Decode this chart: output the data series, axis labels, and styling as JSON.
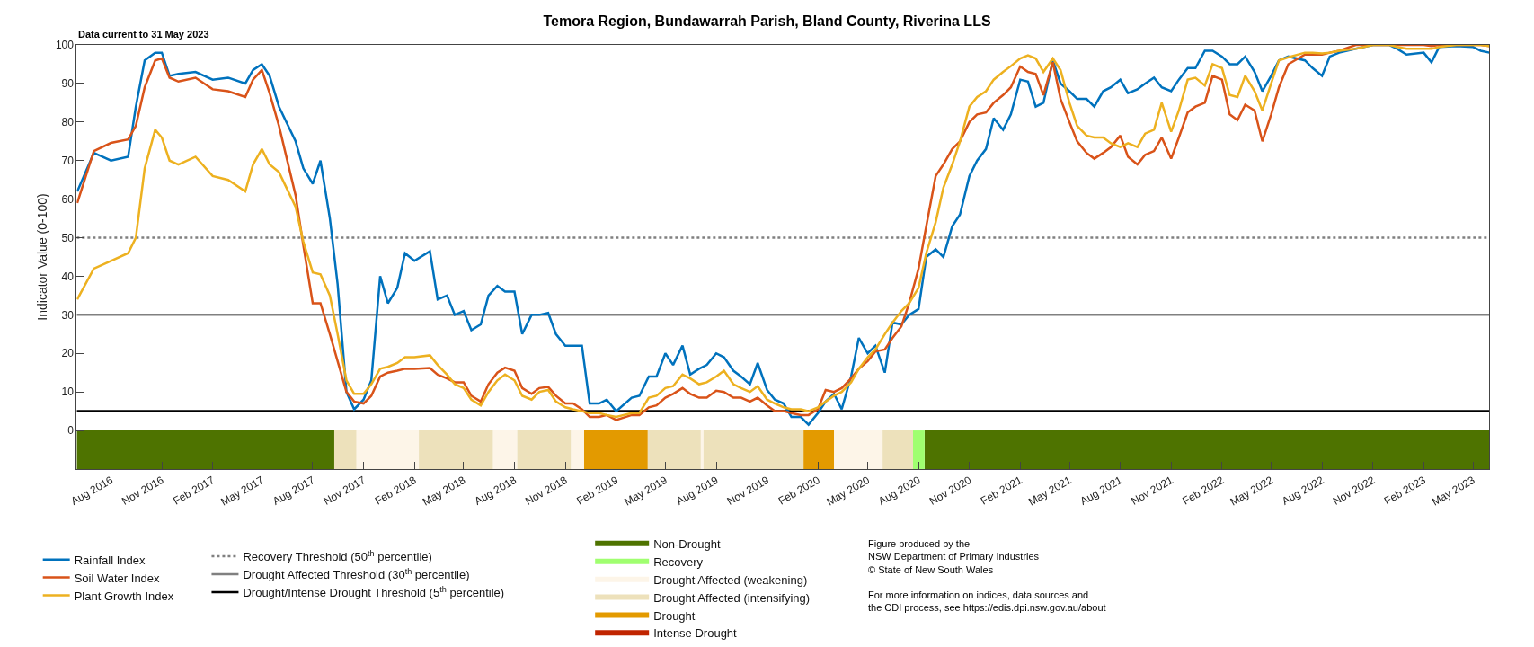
{
  "chart_data": {
    "type": "line",
    "title": "Temora Region, Bundawarrah Parish, Bland County, Riverina LLS",
    "ylabel": "Indicator Value (0-100)",
    "annotations": [
      "Data current to 31 May 2023",
      "Figure produced by the\nNSW Department of Primary Industries\n© State of New South Wales",
      "For more information on indices, data sources and\nthe CDI process, see https://edis.dpi.nsw.gov.au/about",
      "Intense Drought"
    ],
    "x": [
      "2016-06-01",
      "2016-07-01",
      "2016-08-01",
      "2016-09-01",
      "2016-09-15",
      "2016-10-01",
      "2016-10-20",
      "2016-11-01",
      "2016-11-15",
      "2016-12-01",
      "2017-01-01",
      "2017-02-01",
      "2017-03-01",
      "2017-04-01",
      "2017-04-15",
      "2017-05-01",
      "2017-05-15",
      "2017-06-01",
      "2017-07-01",
      "2017-07-15",
      "2017-08-01",
      "2017-08-15",
      "2017-09-01",
      "2017-09-15",
      "2017-10-01",
      "2017-10-15",
      "2017-11-01",
      "2017-11-15",
      "2017-12-01",
      "2017-12-15",
      "2018-01-01",
      "2018-01-15",
      "2018-02-01",
      "2018-03-01",
      "2018-03-15",
      "2018-04-01",
      "2018-04-15",
      "2018-05-01",
      "2018-05-15",
      "2018-06-01",
      "2018-06-15",
      "2018-07-01",
      "2018-07-15",
      "2018-08-01",
      "2018-08-15",
      "2018-09-01",
      "2018-09-15",
      "2018-10-01",
      "2018-10-15",
      "2018-11-01",
      "2018-11-15",
      "2018-12-01",
      "2018-12-15",
      "2019-01-01",
      "2019-01-15",
      "2019-02-01",
      "2019-03-01",
      "2019-03-15",
      "2019-04-01",
      "2019-04-15",
      "2019-05-01",
      "2019-05-15",
      "2019-06-01",
      "2019-06-15",
      "2019-07-01",
      "2019-07-15",
      "2019-08-01",
      "2019-08-15",
      "2019-09-01",
      "2019-09-15",
      "2019-10-01",
      "2019-10-15",
      "2019-11-01",
      "2019-11-15",
      "2019-12-01",
      "2019-12-15",
      "2020-01-01",
      "2020-01-15",
      "2020-02-01",
      "2020-02-15",
      "2020-03-01",
      "2020-03-15",
      "2020-04-01",
      "2020-04-15",
      "2020-05-01",
      "2020-05-15",
      "2020-06-01",
      "2020-06-15",
      "2020-07-01",
      "2020-07-15",
      "2020-08-01",
      "2020-08-15",
      "2020-09-01",
      "2020-09-15",
      "2020-10-01",
      "2020-10-15",
      "2020-11-01",
      "2020-11-15",
      "2020-12-01",
      "2020-12-15",
      "2021-01-01",
      "2021-01-15",
      "2021-02-01",
      "2021-02-15",
      "2021-03-01",
      "2021-03-15",
      "2021-04-01",
      "2021-04-15",
      "2021-05-01",
      "2021-05-15",
      "2021-06-01",
      "2021-06-15",
      "2021-07-01",
      "2021-07-15",
      "2021-08-01",
      "2021-08-15",
      "2021-09-01",
      "2021-09-15",
      "2021-10-01",
      "2021-10-15",
      "2021-11-01",
      "2021-11-15",
      "2021-12-01",
      "2021-12-15",
      "2022-01-01",
      "2022-01-15",
      "2022-02-01",
      "2022-02-15",
      "2022-03-01",
      "2022-03-15",
      "2022-04-01",
      "2022-04-15",
      "2022-05-01",
      "2022-05-15",
      "2022-06-01",
      "2022-07-01",
      "2022-07-15",
      "2022-08-01",
      "2022-08-15",
      "2022-09-01",
      "2022-10-01",
      "2022-11-01",
      "2022-12-01",
      "2022-12-15",
      "2023-01-01",
      "2023-02-01",
      "2023-02-15",
      "2023-03-01",
      "2023-04-01",
      "2023-05-01",
      "2023-05-15",
      "2023-05-31"
    ],
    "series": [
      {
        "name": "Rainfall Index",
        "color": "#0072bd",
        "values": [
          62,
          72,
          70,
          71,
          84,
          96,
          98,
          98,
          92,
          92.5,
          93,
          91,
          91.5,
          90,
          93.5,
          95,
          92,
          84,
          75,
          68,
          64,
          70,
          55,
          38,
          10,
          5.5,
          8,
          13,
          40,
          33,
          37,
          46,
          44,
          46.5,
          34,
          35,
          30,
          31,
          26,
          27.5,
          35,
          37.5,
          36,
          36,
          25,
          30,
          30,
          30.5,
          25,
          22,
          22,
          22,
          7,
          7,
          8,
          5,
          8.5,
          9,
          14,
          14,
          20,
          17,
          22,
          14.5,
          16,
          17,
          20,
          19,
          15.5,
          14,
          12,
          17.5,
          10.5,
          8,
          7,
          3.5,
          3.5,
          1.5,
          4.5,
          7.5,
          9.5,
          5.5,
          14,
          24,
          20,
          22,
          15,
          28,
          27.5,
          30,
          31.5,
          45,
          47,
          45,
          53,
          56,
          66,
          70,
          73,
          81,
          78,
          82,
          91,
          90.5,
          84,
          85,
          96,
          90,
          88,
          86,
          86,
          84,
          88,
          89,
          91,
          87.5,
          88.5,
          90,
          91.5,
          89,
          88,
          91,
          94,
          94,
          98.5,
          98.5,
          97,
          95,
          95,
          97,
          93,
          88,
          92,
          96,
          97,
          96,
          94,
          92,
          97,
          98,
          99,
          100,
          100,
          99,
          97.5,
          98,
          95.5,
          99.5,
          99.7,
          99.5,
          98.5,
          98
        ]
      },
      {
        "name": "Soil Water Index",
        "color": "#d95319",
        "values": [
          59,
          72.5,
          74.6,
          75.5,
          79,
          89,
          96,
          96.5,
          91.5,
          90.5,
          91.5,
          88.5,
          88,
          86.5,
          91,
          93.5,
          87.5,
          79,
          61,
          48,
          33,
          33,
          25,
          18,
          10,
          7.5,
          7,
          9,
          14,
          15,
          15.5,
          16,
          16,
          16.2,
          14.5,
          13.5,
          12.5,
          12.5,
          9,
          7.5,
          12,
          15,
          16.3,
          15.5,
          11,
          9.5,
          11,
          11.3,
          9,
          7,
          7,
          5.5,
          3.5,
          3.5,
          4,
          2.7,
          4,
          4,
          6,
          6.5,
          8.5,
          9.5,
          11,
          9.5,
          8.5,
          8.5,
          10.3,
          10,
          8.5,
          8.5,
          7.5,
          8.5,
          6.5,
          5,
          5,
          4.5,
          4,
          4,
          5.5,
          10.5,
          10,
          11,
          13.5,
          16,
          18,
          20.5,
          21,
          24,
          27,
          33,
          42,
          53,
          66,
          69,
          73,
          75,
          80,
          82,
          82.5,
          85,
          87,
          89,
          94.4,
          93,
          92.5,
          87,
          95.5,
          86,
          80,
          75,
          72,
          70.5,
          72,
          73.5,
          76.5,
          71,
          69,
          71.5,
          72.5,
          76,
          70.5,
          76,
          82.5,
          84,
          85,
          92,
          91,
          82,
          80.5,
          84.5,
          83,
          75,
          82,
          89,
          95,
          97.5,
          97.5,
          97.5,
          98,
          98.5,
          100,
          100,
          100,
          100,
          100,
          100,
          99.7,
          100,
          100,
          100,
          100,
          99.7
        ]
      },
      {
        "name": "Plant Growth Index",
        "color": "#edb120",
        "values": [
          34,
          42,
          44,
          46,
          50,
          68,
          78,
          76,
          70,
          69,
          71,
          66,
          65,
          62,
          69,
          73,
          69,
          67,
          58,
          49,
          41,
          40.5,
          35,
          25,
          13,
          9.5,
          9.5,
          12,
          16,
          16.5,
          17.5,
          19,
          19,
          19.5,
          17,
          14.5,
          12,
          11,
          8,
          6.5,
          10,
          13,
          14.5,
          13,
          9,
          8,
          10,
          10.5,
          7.5,
          6,
          5.5,
          5,
          4.5,
          4.5,
          4,
          3.5,
          4.5,
          4.5,
          8.5,
          9,
          11,
          11.5,
          14.5,
          13.5,
          12,
          12.5,
          14,
          15.5,
          12,
          11,
          10,
          11.5,
          8,
          7,
          6,
          5.5,
          5.5,
          5,
          6,
          7.5,
          9,
          10,
          12.5,
          16,
          19,
          21,
          25,
          28,
          31,
          33,
          37,
          46,
          54,
          63,
          69,
          75,
          84,
          86.5,
          88,
          91,
          93,
          94.5,
          96.5,
          97.3,
          96.5,
          93,
          96.5,
          93.5,
          85,
          79,
          76.5,
          76,
          76,
          74.5,
          73.5,
          74.5,
          73.5,
          77,
          78,
          85,
          77.5,
          83,
          91,
          91.5,
          89.5,
          95,
          94,
          87,
          86.5,
          92,
          88,
          83,
          90,
          96,
          96.8,
          98,
          98,
          97.8,
          98,
          98.5,
          99,
          100,
          100,
          99.5,
          99,
          99,
          99,
          99.5,
          100,
          100,
          100,
          99.7
        ]
      }
    ],
    "ref_lines": [
      {
        "axis": "y",
        "value": 50,
        "label": "Recovery Threshold (50$^{th}$ percentile)",
        "color": "#808080",
        "line_style": "dotted"
      },
      {
        "axis": "y",
        "value": 30,
        "label": "Drought Affected Threshold (30$^{th}$ percentile)",
        "color": "#808080",
        "line_style": "solid"
      },
      {
        "axis": "y",
        "value": 5,
        "label": "Drought/Intense Drought Threshold (5$^{th}$ percentile)",
        "color": "#000000",
        "line_style": "solid"
      }
    ],
    "bands": [
      {
        "axis": "x",
        "from": "2016-05-31",
        "to": "2017-09-09",
        "label": "Non-Drought",
        "color": "#4e7300"
      },
      {
        "axis": "x",
        "from": "2020-08-12",
        "to": "2023-05-31",
        "color": "#4e7300"
      },
      {
        "axis": "x",
        "from": "2020-07-22",
        "to": "2020-08-12",
        "label": "Recovery",
        "color": "#a0ff70"
      },
      {
        "axis": "x",
        "from": "2017-10-19",
        "to": "2018-02-09",
        "label": "Drought Affected (weakening)",
        "color": "#fdf5e8"
      },
      {
        "axis": "x",
        "from": "2018-06-23",
        "to": "2018-08-06",
        "color": "#fdf5e8"
      },
      {
        "axis": "x",
        "from": "2018-11-11",
        "to": "2018-12-05",
        "color": "#fdf5e8"
      },
      {
        "axis": "x",
        "from": "2019-07-04",
        "to": "2019-07-09",
        "color": "#fdf5e8"
      },
      {
        "axis": "x",
        "from": "2020-03-01",
        "to": "2020-05-28",
        "color": "#fdf5e8"
      },
      {
        "axis": "x",
        "from": "2017-09-09",
        "to": "2017-10-19",
        "label": "Drought Affected (intensifying)",
        "color": "#ede1bb"
      },
      {
        "axis": "x",
        "from": "2018-02-09",
        "to": "2018-06-23",
        "color": "#ede1bb"
      },
      {
        "axis": "x",
        "from": "2018-08-06",
        "to": "2018-11-11",
        "color": "#ede1bb"
      },
      {
        "axis": "x",
        "from": "2019-03-30",
        "to": "2019-07-04",
        "color": "#ede1bb"
      },
      {
        "axis": "x",
        "from": "2019-07-09",
        "to": "2020-01-06",
        "color": "#ede1bb"
      },
      {
        "axis": "x",
        "from": "2020-05-28",
        "to": "2020-07-22",
        "color": "#ede1bb"
      },
      {
        "axis": "x",
        "from": "2018-12-05",
        "to": "2019-03-30",
        "label": "Drought",
        "color": "#e39a00"
      },
      {
        "axis": "x",
        "from": "2020-01-06",
        "to": "2020-03-01",
        "color": "#e39a00"
      }
    ],
    "xlim": [
      "2016-05-31",
      "2023-05-31"
    ],
    "xticks": [
      {
        "value": "2016-08-01",
        "label": "Aug 2016"
      },
      {
        "value": "2016-11-01",
        "label": "Nov 2016"
      },
      {
        "value": "2017-02-01",
        "label": "Feb 2017"
      },
      {
        "value": "2017-05-01",
        "label": "May 2017"
      },
      {
        "value": "2017-08-01",
        "label": "Aug 2017"
      },
      {
        "value": "2017-11-01",
        "label": "Nov 2017"
      },
      {
        "value": "2018-02-01",
        "label": "Feb 2018"
      },
      {
        "value": "2018-05-01",
        "label": "May 2018"
      },
      {
        "value": "2018-08-01",
        "label": "Aug 2018"
      },
      {
        "value": "2018-11-01",
        "label": "Nov 2018"
      },
      {
        "value": "2019-02-01",
        "label": "Feb 2019"
      },
      {
        "value": "2019-05-01",
        "label": "May 2019"
      },
      {
        "value": "2019-08-01",
        "label": "Aug 2019"
      },
      {
        "value": "2019-11-01",
        "label": "Nov 2019"
      },
      {
        "value": "2020-02-01",
        "label": "Feb 2020"
      },
      {
        "value": "2020-05-01",
        "label": "May 2020"
      },
      {
        "value": "2020-08-01",
        "label": "Aug 2020"
      },
      {
        "value": "2020-11-01",
        "label": "Nov 2020"
      },
      {
        "value": "2021-02-01",
        "label": "Feb 2021"
      },
      {
        "value": "2021-05-01",
        "label": "May 2021"
      },
      {
        "value": "2021-08-01",
        "label": "Aug 2021"
      },
      {
        "value": "2021-11-01",
        "label": "Nov 2021"
      },
      {
        "value": "2022-02-01",
        "label": "Feb 2022"
      },
      {
        "value": "2022-05-01",
        "label": "May 2022"
      },
      {
        "value": "2022-08-01",
        "label": "Aug 2022"
      },
      {
        "value": "2022-11-01",
        "label": "Nov 2022"
      },
      {
        "value": "2023-02-01",
        "label": "Feb 2023"
      },
      {
        "value": "2023-05-01",
        "label": "May 2023"
      }
    ],
    "ylim": [
      -10,
      100
    ],
    "yticks": [
      0,
      10,
      20,
      30,
      40,
      50,
      60,
      70,
      80,
      90,
      100
    ],
    "grid": false,
    "legend": "bottom left",
    "marker": "none",
    "line_style": "solid"
  }
}
